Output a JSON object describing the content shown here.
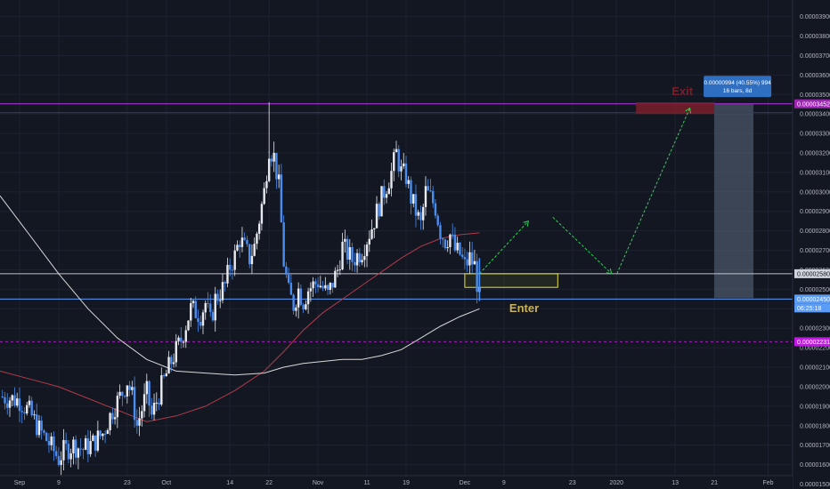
{
  "chart_data": {
    "type": "candlestick",
    "y_axis_ticks": [
      "0.00003900",
      "0.00003800",
      "0.00003700",
      "0.00003600",
      "0.00003500",
      "0.00003400",
      "0.00003300",
      "0.00003200",
      "0.00003100",
      "0.00003000",
      "0.00002900",
      "0.00002800",
      "0.00002700",
      "0.00002600",
      "0.00002500",
      "0.00002400",
      "0.00002300",
      "0.00002200",
      "0.00002100",
      "0.00002000",
      "0.00001900",
      "0.00001800",
      "0.00001700",
      "0.00001600",
      "0.00001500"
    ],
    "y_axis_values": [
      3.9e-05,
      3.8e-05,
      3.7e-05,
      3.6e-05,
      3.5e-05,
      3.4e-05,
      3.3e-05,
      3.2e-05,
      3.1e-05,
      3e-05,
      2.9e-05,
      2.8e-05,
      2.7e-05,
      2.6e-05,
      2.5e-05,
      2.4e-05,
      2.3e-05,
      2.2e-05,
      2.1e-05,
      2e-05,
      1.9e-05,
      1.8e-05,
      1.7e-05,
      1.6e-05,
      1.5e-05
    ],
    "ylim": [
      1.475e-05,
      3.985e-05
    ],
    "x_axis_ticks": [
      {
        "label": "Sep",
        "day": 0
      },
      {
        "label": "9",
        "day": 8
      },
      {
        "label": "23",
        "day": 22
      },
      {
        "label": "Oct",
        "day": 30
      },
      {
        "label": "14",
        "day": 43
      },
      {
        "label": "22",
        "day": 51
      },
      {
        "label": "Nov",
        "day": 61
      },
      {
        "label": "11",
        "day": 71
      },
      {
        "label": "19",
        "day": 79
      },
      {
        "label": "Dec",
        "day": 91
      },
      {
        "label": "9",
        "day": 99
      },
      {
        "label": "23",
        "day": 113
      },
      {
        "label": "2020",
        "day": 122
      },
      {
        "label": "13",
        "day": 134
      },
      {
        "label": "21",
        "day": 142
      },
      {
        "label": "Feb",
        "day": 153
      }
    ],
    "xlim_days": [
      -4,
      158
    ],
    "price_path": [
      [
        -4,
        1.95e-05
      ],
      [
        0,
        1.93e-05
      ],
      [
        2,
        1.87e-05
      ],
      [
        4,
        1.78e-05
      ],
      [
        6,
        1.71e-05
      ],
      [
        8,
        1.63e-05
      ],
      [
        9,
        1.67e-05
      ],
      [
        11,
        1.7e-05
      ],
      [
        13,
        1.68e-05
      ],
      [
        15,
        1.71e-05
      ],
      [
        17,
        1.76e-05
      ],
      [
        19,
        1.88e-05
      ],
      [
        21,
        1.97e-05
      ],
      [
        22,
        2.03e-05
      ],
      [
        23,
        1.95e-05
      ],
      [
        24,
        1.8e-05
      ],
      [
        26,
        1.97e-05
      ],
      [
        27,
        1.85e-05
      ],
      [
        29,
        2e-05
      ],
      [
        31,
        2.13e-05
      ],
      [
        33,
        2.24e-05
      ],
      [
        35,
        2.4e-05
      ],
      [
        37,
        2.37e-05
      ],
      [
        38,
        2.43e-05
      ],
      [
        39,
        2.33e-05
      ],
      [
        40,
        2.45e-05
      ],
      [
        42,
        2.52e-05
      ],
      [
        43,
        2.62e-05
      ],
      [
        44,
        2.67e-05
      ],
      [
        45,
        2.76e-05
      ],
      [
        47,
        2.66e-05
      ],
      [
        48,
        2.72e-05
      ],
      [
        50,
        3e-05
      ],
      [
        51,
        3.23e-05
      ],
      [
        52,
        3.18e-05
      ],
      [
        53,
        3.03e-05
      ],
      [
        54,
        2.64e-05
      ],
      [
        55,
        2.48e-05
      ],
      [
        56,
        2.42e-05
      ],
      [
        57,
        2.5e-05
      ],
      [
        58,
        2.44e-05
      ],
      [
        59,
        2.5e-05
      ],
      [
        61,
        2.54e-05
      ],
      [
        63,
        2.47e-05
      ],
      [
        65,
        2.6e-05
      ],
      [
        66,
        2.72e-05
      ],
      [
        68,
        2.65e-05
      ],
      [
        70,
        2.7e-05
      ],
      [
        72,
        2.82e-05
      ],
      [
        74,
        2.97e-05
      ],
      [
        76,
        3.1e-05
      ],
      [
        77,
        3.2e-05
      ],
      [
        78,
        3.1e-05
      ],
      [
        79,
        3.08e-05
      ],
      [
        80,
        2.97e-05
      ],
      [
        81,
        2.9e-05
      ],
      [
        82,
        2.83e-05
      ],
      [
        83,
        3e-05
      ],
      [
        84,
        2.97e-05
      ],
      [
        85,
        2.92e-05
      ],
      [
        86,
        2.8e-05
      ],
      [
        87,
        2.75e-05
      ],
      [
        88,
        2.78e-05
      ],
      [
        89,
        2.7e-05
      ],
      [
        90,
        2.68e-05
      ],
      [
        91,
        2.62e-05
      ],
      [
        92,
        2.66e-05
      ],
      [
        93,
        2.62e-05
      ],
      [
        94,
        2.45e-05
      ]
    ],
    "moving_averages": [
      {
        "color": "#b23a48",
        "points": [
          [
            -4,
            2.08e-05
          ],
          [
            2,
            2.04e-05
          ],
          [
            8,
            2e-05
          ],
          [
            14,
            1.94e-05
          ],
          [
            20,
            1.88e-05
          ],
          [
            26,
            1.82e-05
          ],
          [
            32,
            1.85e-05
          ],
          [
            38,
            1.9e-05
          ],
          [
            44,
            1.98e-05
          ],
          [
            50,
            2.08e-05
          ],
          [
            54,
            2.18e-05
          ],
          [
            58,
            2.29e-05
          ],
          [
            62,
            2.38e-05
          ],
          [
            66,
            2.45e-05
          ],
          [
            70,
            2.52e-05
          ],
          [
            74,
            2.59e-05
          ],
          [
            78,
            2.66e-05
          ],
          [
            82,
            2.72e-05
          ],
          [
            86,
            2.76e-05
          ],
          [
            90,
            2.78e-05
          ],
          [
            94,
            2.79e-05
          ]
        ]
      },
      {
        "color": "#d9d9d9",
        "points": [
          [
            -4,
            2.98e-05
          ],
          [
            2,
            2.78e-05
          ],
          [
            8,
            2.58e-05
          ],
          [
            14,
            2.4e-05
          ],
          [
            20,
            2.25e-05
          ],
          [
            26,
            2.14e-05
          ],
          [
            32,
            2.08e-05
          ],
          [
            38,
            2.07e-05
          ],
          [
            44,
            2.06e-05
          ],
          [
            50,
            2.07e-05
          ],
          [
            54,
            2.1e-05
          ],
          [
            58,
            2.12e-05
          ],
          [
            62,
            2.13e-05
          ],
          [
            66,
            2.14e-05
          ],
          [
            70,
            2.14e-05
          ],
          [
            74,
            2.16e-05
          ],
          [
            78,
            2.19e-05
          ],
          [
            82,
            2.25e-05
          ],
          [
            86,
            2.31e-05
          ],
          [
            90,
            2.36e-05
          ],
          [
            94,
            2.4e-05
          ]
        ]
      }
    ],
    "horizontal_lines": [
      {
        "price": 3.452e-05,
        "color": "#b534e8",
        "label": "0.00003452",
        "tag_color": "#9c27b0"
      },
      {
        "price": 2.58e-05,
        "color": "#d1d4dc",
        "label": "0.00002580",
        "tag_color": "#d1d4dc"
      },
      {
        "price": 2.45e-05,
        "color": "#5b9cf6",
        "label": "0.00002450",
        "tag_color": "#5b9cf6"
      },
      {
        "price": 2.231e-05,
        "color": "#9c27b0",
        "label": "0.00002231",
        "tag_color": "#c218e6"
      }
    ],
    "countdown_label": "06:25:18",
    "zones": [
      {
        "name": "enter",
        "day_start": 91,
        "day_end": 110,
        "price_top": 2.58e-05,
        "price_bottom": 2.51e-05,
        "label": "Enter",
        "color": "#e6e23a",
        "label_color": "#c9b15a"
      },
      {
        "name": "exit",
        "day_start": 126,
        "day_end": 142,
        "price_top": 3.46e-05,
        "price_bottom": 3.4e-05,
        "label": "Exit",
        "color": "#7a1f2a",
        "label_color": "#7a1f2a"
      }
    ],
    "projection_path": [
      [
        94,
        2.58e-05
      ],
      [
        100,
        2.75e-05
      ],
      [
        104,
        2.85e-05
      ],
      [
        109,
        2.87e-05
      ],
      [
        113,
        2.73e-05
      ],
      [
        116,
        2.58e-05
      ],
      [
        121,
        2.58e-05
      ],
      [
        137,
        3.43e-05
      ]
    ],
    "measure_box": {
      "day_start": 142,
      "day_end": 150,
      "price_top": 3.45e-05,
      "price_bottom": 2.455e-05,
      "line1": "0.00000994 (40.55%) 994",
      "line2": "16 bars, 8d"
    }
  }
}
